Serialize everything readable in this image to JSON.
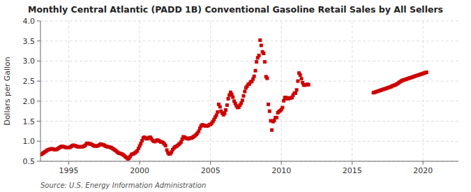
{
  "chart_data": {
    "type": "scatter",
    "title": "Monthly Central Atlantic (PADD 1B) Conventional Gasoline Retail Sales by All Sellers",
    "ylabel": "Dollars per Gallon",
    "source": "Source: U.S. Energy Information Administration",
    "color": "#cc0000",
    "marker": "square",
    "grid": true,
    "xlim": [
      1993.0,
      2022.5
    ],
    "ylim": [
      0.5,
      4.0
    ],
    "xticks": [
      1995,
      2000,
      2005,
      2010,
      2015,
      2020
    ],
    "yticks": [
      0.5,
      {
        "value": 1.0,
        "label": "1.0"
      },
      1.5,
      {
        "value": 2.0,
        "label": "2.0"
      },
      2.5,
      {
        "value": 3.0,
        "label": "3.0"
      },
      3.5,
      {
        "value": 4.0,
        "label": "4.0"
      }
    ],
    "x": [
      1993.08,
      1993.17,
      1993.25,
      1993.33,
      1993.42,
      1993.5,
      1993.58,
      1993.67,
      1993.75,
      1993.83,
      1993.92,
      1994.0,
      1994.08,
      1994.17,
      1994.25,
      1994.33,
      1994.42,
      1994.5,
      1994.58,
      1994.67,
      1994.75,
      1994.83,
      1994.92,
      1995.0,
      1995.08,
      1995.17,
      1995.25,
      1995.33,
      1995.42,
      1995.5,
      1995.58,
      1995.67,
      1995.75,
      1995.83,
      1995.92,
      1996.0,
      1996.08,
      1996.17,
      1996.25,
      1996.33,
      1996.42,
      1996.5,
      1996.58,
      1996.67,
      1996.75,
      1996.83,
      1996.92,
      1997.0,
      1997.08,
      1997.17,
      1997.25,
      1997.33,
      1997.42,
      1997.5,
      1997.58,
      1997.67,
      1997.75,
      1997.83,
      1997.92,
      1998.0,
      1998.08,
      1998.17,
      1998.25,
      1998.33,
      1998.42,
      1998.5,
      1998.58,
      1998.67,
      1998.75,
      1998.83,
      1998.92,
      1999.0,
      1999.08,
      1999.17,
      1999.25,
      1999.33,
      1999.42,
      1999.5,
      1999.58,
      1999.67,
      1999.75,
      1999.83,
      1999.92,
      2000.0,
      2000.08,
      2000.17,
      2000.25,
      2000.33,
      2000.42,
      2000.5,
      2000.58,
      2000.67,
      2000.75,
      2000.83,
      2000.92,
      2001.0,
      2001.08,
      2001.17,
      2001.25,
      2001.33,
      2001.42,
      2001.5,
      2001.58,
      2001.67,
      2001.75,
      2001.83,
      2001.92,
      2002.0,
      2002.08,
      2002.17,
      2002.25,
      2002.33,
      2002.42,
      2002.5,
      2002.58,
      2002.67,
      2002.75,
      2002.83,
      2002.92,
      2003.0,
      2003.08,
      2003.17,
      2003.25,
      2003.33,
      2003.42,
      2003.5,
      2003.58,
      2003.67,
      2003.75,
      2003.83,
      2003.92,
      2004.0,
      2004.08,
      2004.17,
      2004.25,
      2004.33,
      2004.42,
      2004.5,
      2004.58,
      2004.67,
      2004.75,
      2004.83,
      2004.92,
      2005.0,
      2005.08,
      2005.17,
      2005.25,
      2005.33,
      2005.42,
      2005.5,
      2005.58,
      2005.67,
      2005.75,
      2005.83,
      2005.92,
      2006.0,
      2006.08,
      2006.17,
      2006.25,
      2006.33,
      2006.42,
      2006.5,
      2006.58,
      2006.67,
      2006.75,
      2006.83,
      2006.92,
      2007.0,
      2007.08,
      2007.17,
      2007.25,
      2007.33,
      2007.42,
      2007.5,
      2007.58,
      2007.67,
      2007.75,
      2007.83,
      2007.92,
      2008.0,
      2008.08,
      2008.17,
      2008.25,
      2008.33,
      2008.42,
      2008.5,
      2008.58,
      2008.67,
      2008.75,
      2008.83,
      2008.92,
      2009.0,
      2009.08,
      2009.17,
      2009.25,
      2009.33,
      2009.42,
      2009.5,
      2009.58,
      2009.67,
      2009.75,
      2009.83,
      2009.92,
      2010.0,
      2010.08,
      2010.17,
      2010.25,
      2010.33,
      2010.42,
      2010.5,
      2010.58,
      2010.67,
      2010.75,
      2010.83,
      2010.92,
      2011.0,
      2011.08,
      2011.17,
      2011.25,
      2011.33,
      2011.42,
      2011.5,
      2011.58,
      2011.67,
      2011.75,
      2011.83,
      2011.92,
      2016.5,
      2016.58,
      2016.67,
      2016.75,
      2016.83,
      2016.92,
      2017.0,
      2017.08,
      2017.17,
      2017.25,
      2017.33,
      2017.42,
      2017.5,
      2017.58,
      2017.67,
      2017.75,
      2017.83,
      2017.92,
      2018.0,
      2018.08,
      2018.17,
      2018.25,
      2018.33,
      2018.42,
      2018.5,
      2018.58,
      2018.67,
      2018.75,
      2018.83,
      2018.92,
      2019.0,
      2019.08,
      2019.17,
      2019.25,
      2019.33,
      2019.42,
      2019.5,
      2019.58,
      2019.67,
      2019.75,
      2019.83,
      2019.92,
      2020.0,
      2020.08,
      2020.17,
      2020.25
    ],
    "values": [
      0.671,
      0.7,
      0.72,
      0.74,
      0.76,
      0.78,
      0.79,
      0.8,
      0.81,
      0.81,
      0.8,
      0.79,
      0.79,
      0.8,
      0.82,
      0.84,
      0.86,
      0.87,
      0.87,
      0.86,
      0.85,
      0.84,
      0.84,
      0.84,
      0.85,
      0.87,
      0.89,
      0.9,
      0.89,
      0.88,
      0.87,
      0.86,
      0.86,
      0.86,
      0.86,
      0.87,
      0.88,
      0.9,
      0.94,
      0.95,
      0.94,
      0.93,
      0.93,
      0.91,
      0.89,
      0.88,
      0.88,
      0.88,
      0.89,
      0.91,
      0.93,
      0.92,
      0.91,
      0.9,
      0.88,
      0.87,
      0.86,
      0.86,
      0.85,
      0.84,
      0.82,
      0.8,
      0.78,
      0.76,
      0.73,
      0.71,
      0.7,
      0.69,
      0.68,
      0.66,
      0.64,
      0.61,
      0.59,
      0.56,
      0.58,
      0.62,
      0.67,
      0.68,
      0.69,
      0.71,
      0.73,
      0.76,
      0.82,
      0.88,
      0.94,
      1.01,
      1.08,
      1.1,
      1.08,
      1.06,
      1.07,
      1.09,
      1.1,
      1.06,
      1.02,
      1.0,
      0.99,
      1.01,
      1.03,
      1.02,
      1.0,
      0.98,
      0.98,
      0.96,
      0.93,
      0.89,
      0.78,
      0.71,
      0.68,
      0.69,
      0.73,
      0.79,
      0.83,
      0.86,
      0.87,
      0.89,
      0.92,
      0.94,
      0.98,
      1.05,
      1.11,
      1.1,
      1.08,
      1.07,
      1.06,
      1.07,
      1.08,
      1.08,
      1.1,
      1.12,
      1.14,
      1.17,
      1.2,
      1.25,
      1.32,
      1.38,
      1.41,
      1.4,
      1.39,
      1.38,
      1.38,
      1.39,
      1.41,
      1.42,
      1.45,
      1.49,
      1.54,
      1.6,
      1.65,
      1.73,
      1.92,
      1.86,
      1.75,
      1.7,
      1.66,
      1.7,
      1.78,
      1.9,
      2.06,
      2.15,
      2.22,
      2.17,
      2.1,
      2.0,
      1.94,
      1.88,
      1.84,
      1.85,
      1.9,
      1.95,
      2.02,
      2.13,
      2.24,
      2.33,
      2.37,
      2.42,
      2.43,
      2.48,
      2.49,
      2.55,
      2.62,
      2.76,
      2.98,
      3.08,
      3.14,
      3.52,
      3.39,
      3.23,
      3.19,
      2.98,
      2.61,
      2.57,
      1.92,
      1.75,
      1.51,
      1.28,
      1.49,
      1.52,
      1.59,
      1.59,
      1.71,
      1.74,
      1.76,
      1.79,
      1.84,
      2.01,
      2.09,
      2.09,
      2.06,
      2.06,
      2.08,
      2.08,
      2.09,
      2.15,
      2.2,
      2.2,
      2.28,
      2.5,
      2.7,
      2.65,
      2.56,
      2.46,
      2.4,
      2.4,
      2.41,
      2.42,
      2.41,
      2.21,
      2.22,
      2.23,
      2.24,
      2.25,
      2.26,
      2.27,
      2.28,
      2.29,
      2.3,
      2.31,
      2.32,
      2.33,
      2.34,
      2.35,
      2.36,
      2.38,
      2.39,
      2.4,
      2.41,
      2.43,
      2.45,
      2.47,
      2.49,
      2.51,
      2.52,
      2.53,
      2.54,
      2.55,
      2.56,
      2.57,
      2.58,
      2.59,
      2.6,
      2.61,
      2.62,
      2.63,
      2.64,
      2.65,
      2.66,
      2.67,
      2.68,
      2.69,
      2.7,
      2.71,
      2.72
    ]
  }
}
